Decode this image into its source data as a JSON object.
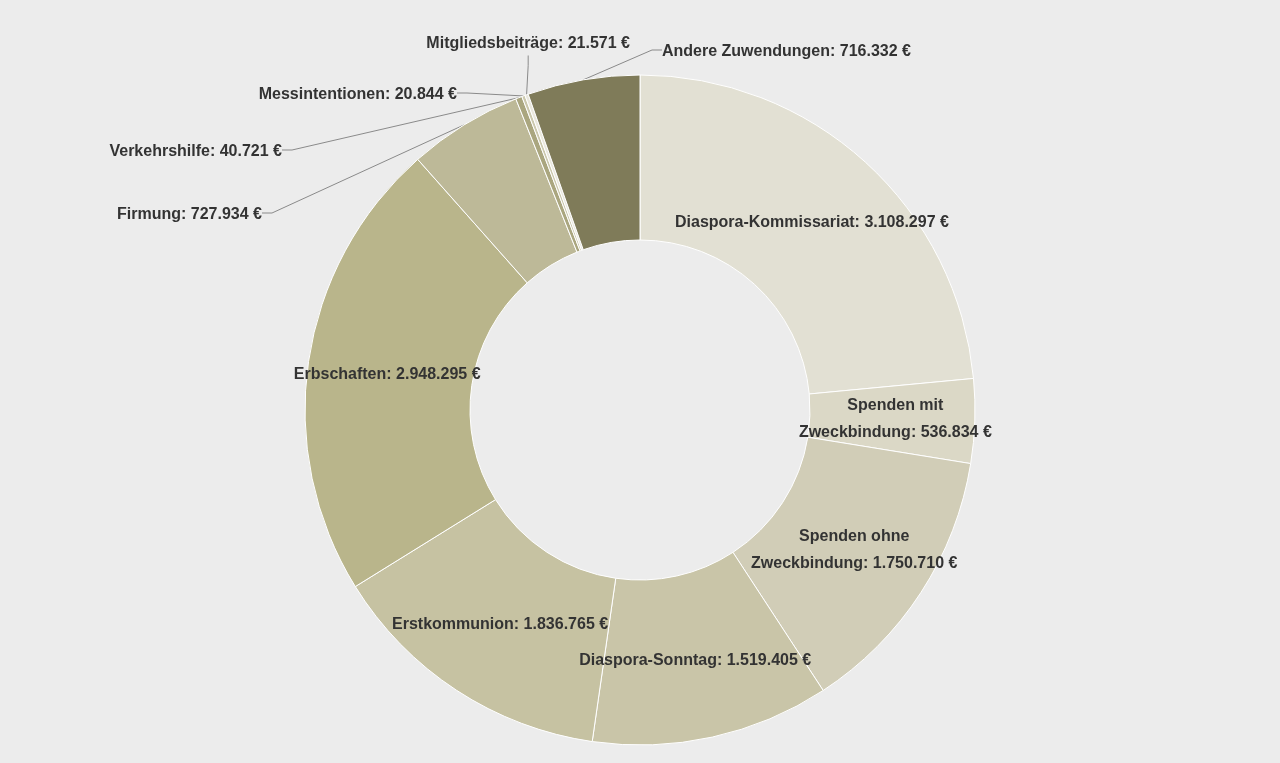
{
  "chart_data": {
    "type": "donut",
    "categories": [
      "Diaspora-Kommissariat",
      "Spenden mit Zweckbindung",
      "Spenden ohne Zweckbindung",
      "Diaspora-Sonntag",
      "Erstkommunion",
      "Erbschaften",
      "Firmung",
      "Verkehrshilfe",
      "Messintentionen",
      "Mitgliedsbeiträge",
      "Andere Zuwendungen"
    ],
    "values": [
      3108297,
      536834,
      1750710,
      1519405,
      1836765,
      2948295,
      727934,
      40721,
      20844,
      21571,
      716332
    ],
    "value_labels": [
      "3.108.297 €",
      "536.834 €",
      "1.750.710 €",
      "1.519.405 €",
      "1.836.765 €",
      "2.948.295 €",
      "727.934 €",
      "40.721 €",
      "20.844 €",
      "21.571 €",
      "716.332 €"
    ],
    "colors": [
      "#e2e0d3",
      "#dbd8c6",
      "#d1cdb7",
      "#c9c5a8",
      "#c6c2a2",
      "#b9b58b",
      "#bdb998",
      "#aaa67f",
      "#cbc8ad",
      "#e9e7dc",
      "#7f7b59"
    ],
    "legend": false
  }
}
